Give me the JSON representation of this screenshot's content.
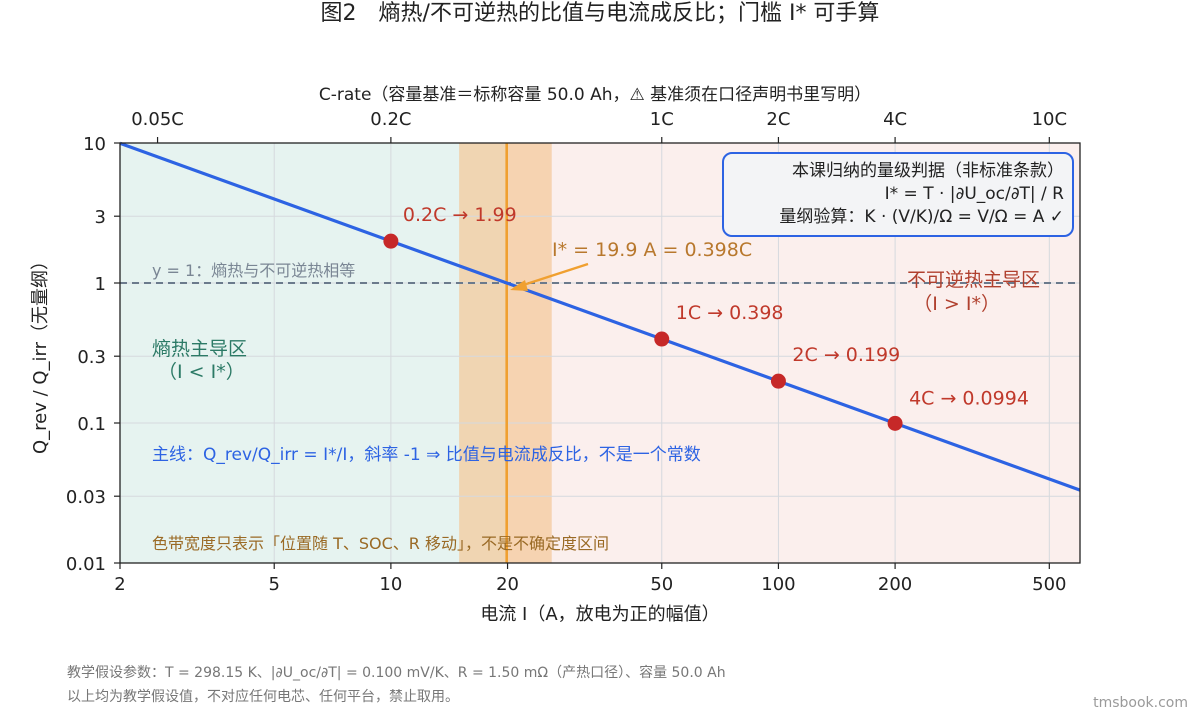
{
  "title": "图2　熵热/不可逆热的比值与电流成反比；门槛 I* 可手算",
  "footnotes": [
    "教学假设参数：T = 298.15 K、|∂U_oc/∂T| = 0.100 mV/K、R = 1.50 mΩ（产热口径）、容量 50.0 Ah",
    "以上均为教学假设值，不对应任何电芯、任何平台，禁止取用。"
  ],
  "watermark": "tmsbook.com",
  "colors": {
    "line": "#2d63e3",
    "points": "#c62828",
    "threshold": "#f0a030",
    "band": "#f3c797",
    "left_region": "#e6f3f0",
    "right_region": "#fbefed",
    "ref_line": "#6b7a8c",
    "label_text": "#c0392b",
    "threshold_text": "#b8782d",
    "left_text": "#2c7a66",
    "right_text": "#b0402e",
    "note_text": "#9a6a25",
    "box_border": "#2d63e3",
    "box_bg": "#f3f4f6"
  },
  "chart_data": {
    "type": "line",
    "xscale": "log",
    "yscale": "log",
    "xlim": [
      2,
      600
    ],
    "ylim": [
      0.01,
      10
    ],
    "xlabel": "电流 I（A，放电为正的幅值）",
    "ylabel": "Q_rev / Q_irr（无量纲）",
    "x_ticks": [
      2,
      5,
      10,
      20,
      50,
      100,
      200,
      500
    ],
    "x_tick_labels": [
      "2",
      "5",
      "10",
      "20",
      "50",
      "100",
      "200",
      "500"
    ],
    "y_ticks": [
      0.01,
      0.03,
      0.1,
      0.3,
      1,
      3,
      10
    ],
    "y_tick_labels": [
      "0.01",
      "0.03",
      "0.1",
      "0.3",
      "1",
      "3",
      "10"
    ],
    "top_axis": {
      "label": "C-rate（容量基准＝标称容量 50.0 Ah，⚠ 基准须在口径声明书里写明）",
      "capacity_ah": 50.0,
      "ticks": [
        0.05,
        0.2,
        1,
        2,
        4,
        10
      ],
      "tick_labels": [
        "0.05C",
        "0.2C",
        "1C",
        "2C",
        "4C",
        "10C"
      ]
    },
    "series": [
      {
        "formula": "Q_rev/Q_irr = I*/I",
        "i_star": 19.9,
        "x_range": [
          2,
          600
        ]
      }
    ],
    "points": [
      {
        "x": 10,
        "y": 1.99,
        "label": "0.2C → 1.99"
      },
      {
        "x": 50,
        "y": 0.398,
        "label": "1C → 0.398"
      },
      {
        "x": 100,
        "y": 0.199,
        "label": "2C → 0.199"
      },
      {
        "x": 200,
        "y": 0.0994,
        "label": "4C → 0.0994"
      }
    ],
    "reference_line": {
      "y": 1,
      "label": "y = 1：熵热与不可逆热相等"
    },
    "threshold": {
      "x": 19.9,
      "label": "I* = 19.9 A = 0.398C",
      "band": [
        15,
        26
      ]
    },
    "regions": {
      "left": {
        "title": "熵热主导区",
        "subtitle": "（I < I*）"
      },
      "right": {
        "title": "不可逆热主导区",
        "subtitle": "（I > I*）"
      }
    },
    "info_box": [
      "本课归纳的量级判据（非标准条款）",
      "I* = T · |∂U_oc/∂T| / R",
      "量纲验算：K · (V/K)/Ω = V/Ω = A ✓"
    ],
    "main_note": "主线：Q_rev/Q_irr = I*/I，斜率 -1 ⇒ 比值与电流成反比，不是一个常数",
    "band_note": "色带宽度只表示「位置随 T、SOC、R 移动」，不是不确定度区间",
    "grid": true
  }
}
